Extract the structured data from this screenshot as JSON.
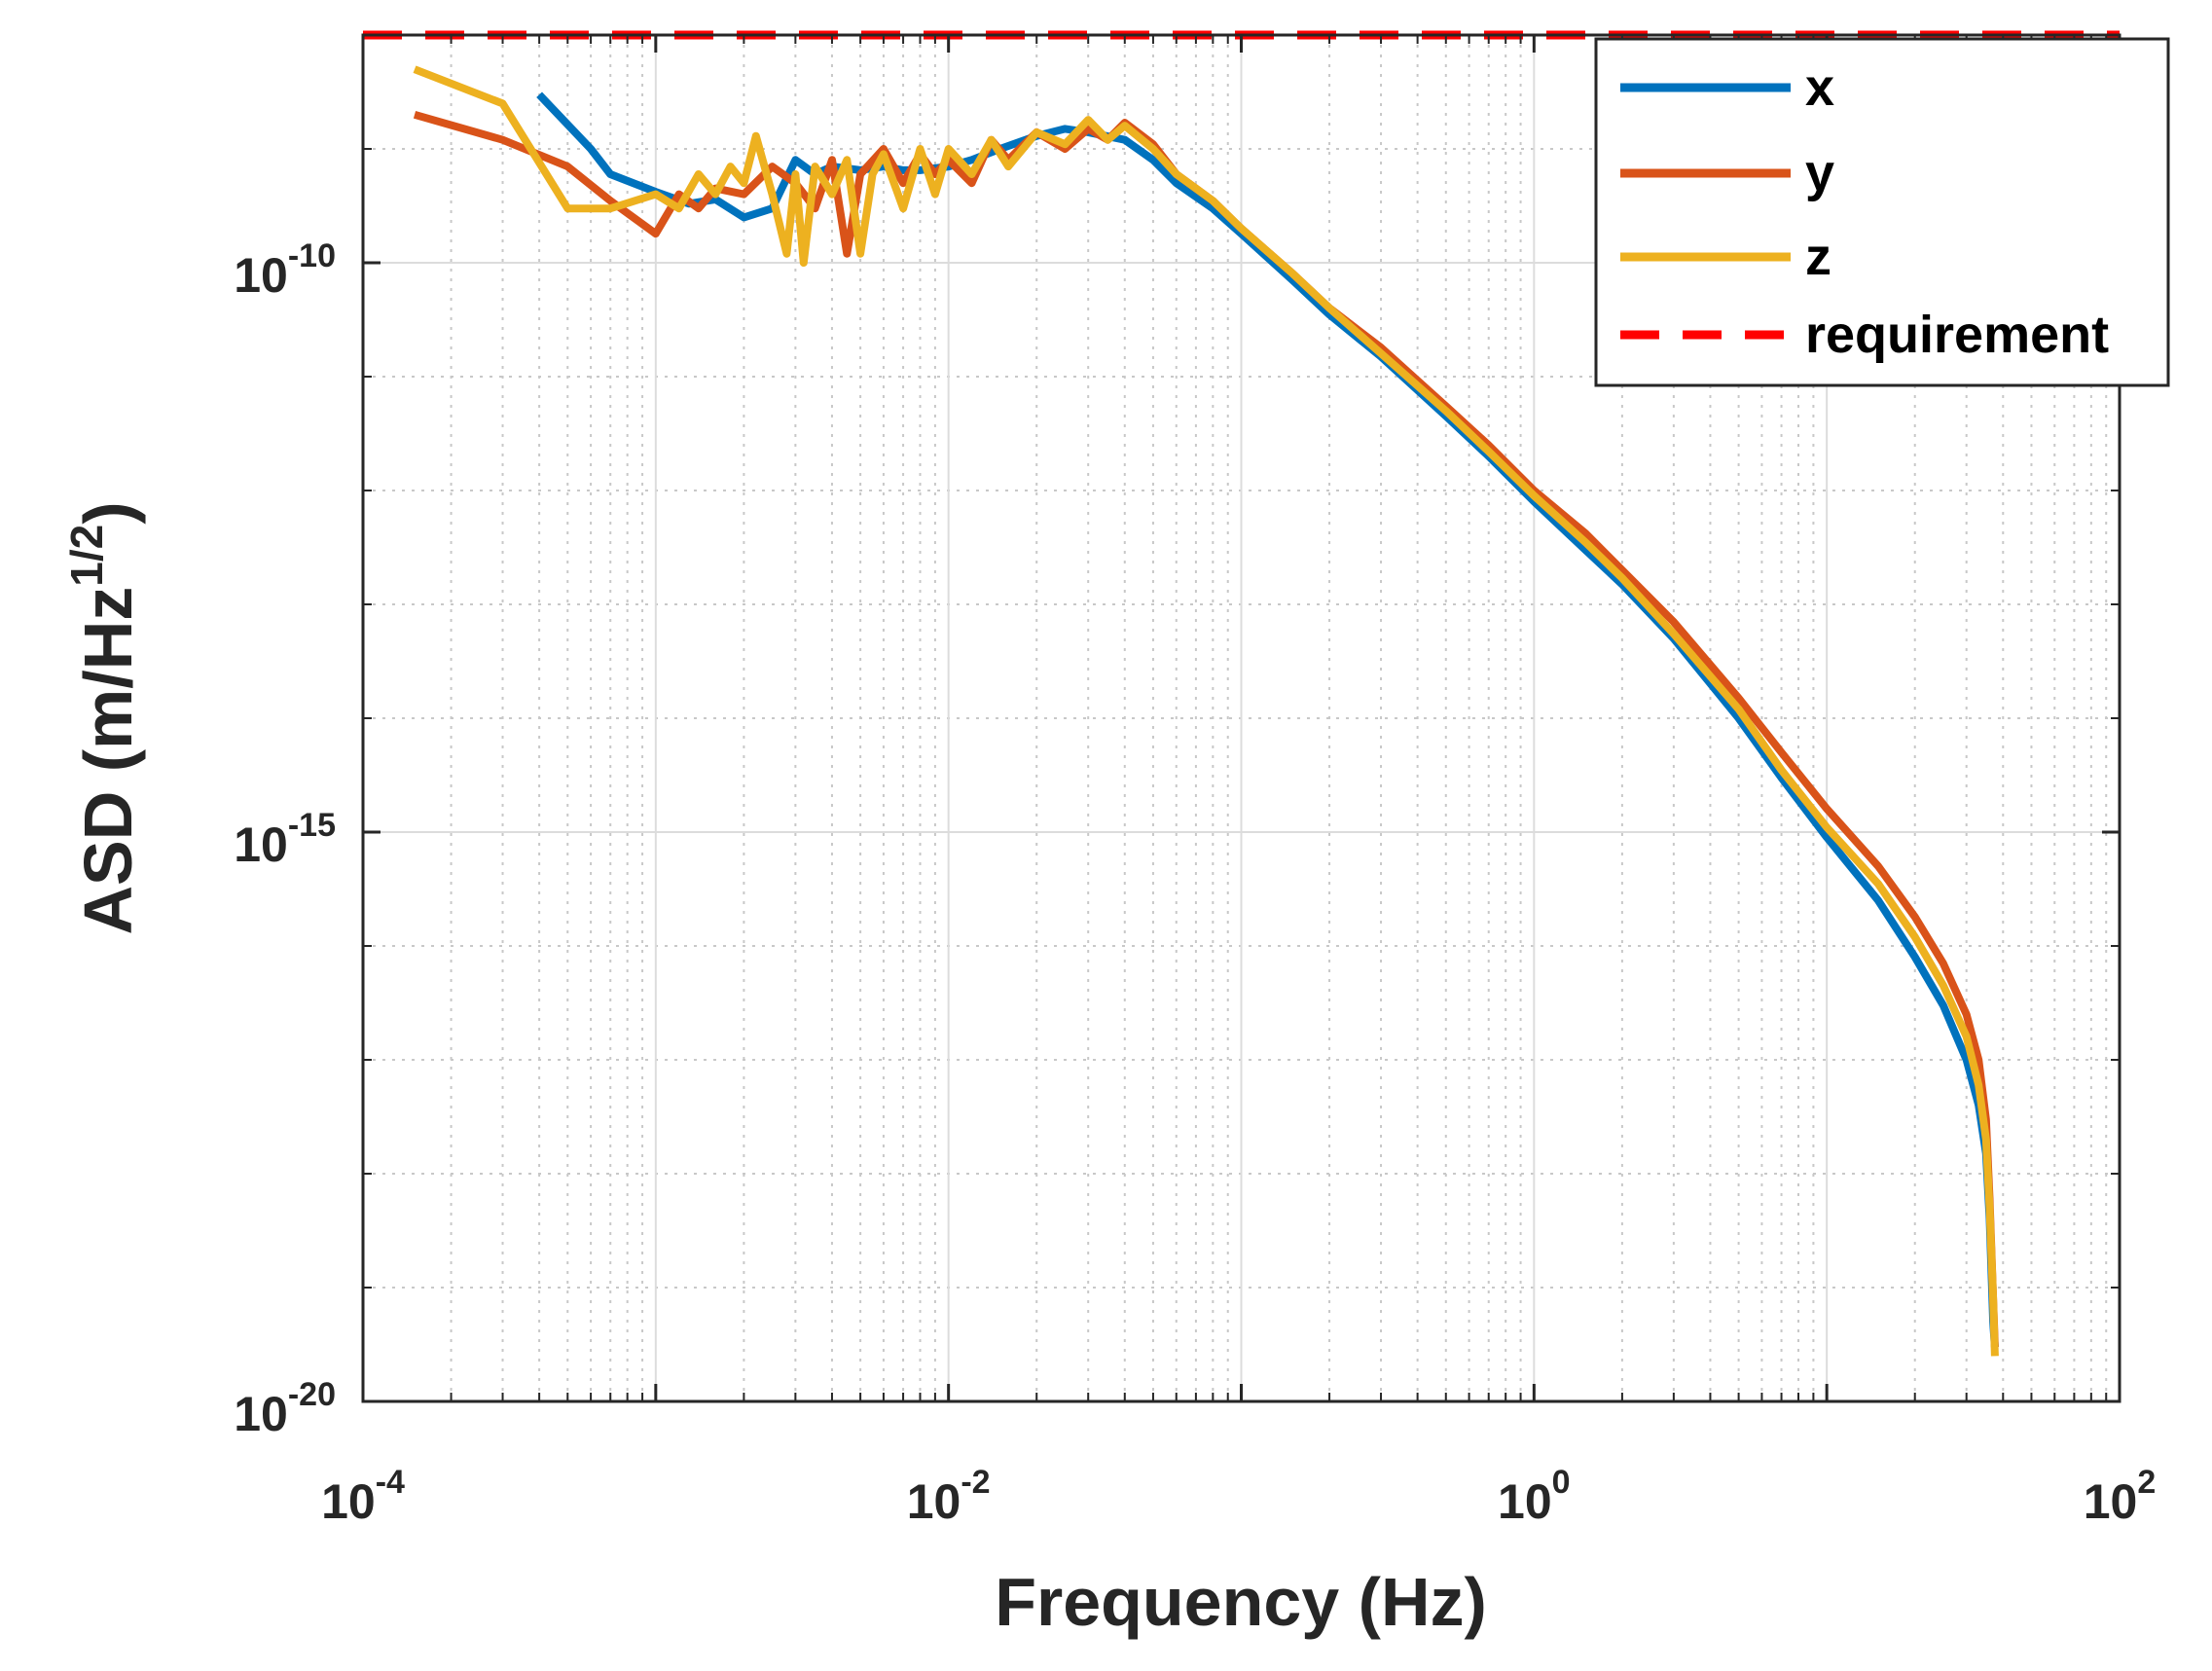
{
  "chart_data": {
    "type": "line",
    "x_scale": "log",
    "y_scale": "log",
    "xlabel": "Frequency (Hz)",
    "ylabel": {
      "base": "ASD (m/Hz",
      "exp": "1/2",
      "close": ")"
    },
    "xlim": [
      0.0001,
      100
    ],
    "ylim": [
      1e-20,
      1e-08
    ],
    "grid": true,
    "legend_position": "top-right",
    "x_ticks": [
      {
        "value": 0.0001,
        "base": "10",
        "exp": "-4"
      },
      {
        "value": 0.01,
        "base": "10",
        "exp": "-2"
      },
      {
        "value": 1,
        "base": "10",
        "exp": "0"
      },
      {
        "value": 100,
        "base": "10",
        "exp": "2"
      }
    ],
    "y_ticks": [
      {
        "value": 1e-20,
        "base": "10",
        "exp": "-20"
      },
      {
        "value": 1e-15,
        "base": "10",
        "exp": "-15"
      },
      {
        "value": 1e-10,
        "base": "10",
        "exp": "-10"
      }
    ],
    "series": [
      {
        "name": "x",
        "color": "#0072BD",
        "dash": false,
        "x": [
          0.0004,
          0.0006,
          0.0007,
          0.001,
          0.0013,
          0.0016,
          0.002,
          0.0025,
          0.003,
          0.0035,
          0.004,
          0.005,
          0.006,
          0.007,
          0.008,
          0.01,
          0.012,
          0.015,
          0.02,
          0.025,
          0.03,
          0.04,
          0.05,
          0.06,
          0.08,
          0.1,
          0.15,
          0.2,
          0.3,
          0.5,
          0.7,
          1,
          1.5,
          2,
          3,
          5,
          7,
          10,
          15,
          20,
          25,
          30,
          33,
          35,
          36,
          37,
          37.5
        ],
        "y": [
          3e-09,
          1e-09,
          6e-10,
          4.2e-10,
          3.3e-10,
          3.6e-10,
          2.5e-10,
          3e-10,
          8e-10,
          6e-10,
          7e-10,
          6.5e-10,
          7e-10,
          6.5e-10,
          6.5e-10,
          7e-10,
          8e-10,
          1e-09,
          1.3e-09,
          1.5e-09,
          1.4e-09,
          1.2e-09,
          8e-10,
          5e-10,
          3e-10,
          1.8e-10,
          7e-11,
          3.5e-11,
          1.5e-11,
          4.5e-12,
          2e-12,
          8e-13,
          3e-13,
          1.5e-13,
          5e-14,
          1e-14,
          3e-15,
          9e-16,
          2.5e-16,
          8e-17,
          3e-17,
          1e-17,
          4e-18,
          1.5e-18,
          4e-19,
          5e-20,
          3e-20
        ]
      },
      {
        "name": "y",
        "color": "#D95319",
        "dash": false,
        "x": [
          0.00015,
          0.0003,
          0.0005,
          0.0007,
          0.001,
          0.0012,
          0.0014,
          0.0016,
          0.002,
          0.0025,
          0.003,
          0.0035,
          0.004,
          0.0045,
          0.005,
          0.006,
          0.007,
          0.008,
          0.009,
          0.01,
          0.012,
          0.014,
          0.016,
          0.02,
          0.025,
          0.03,
          0.035,
          0.04,
          0.05,
          0.06,
          0.08,
          0.1,
          0.15,
          0.2,
          0.3,
          0.5,
          0.7,
          1,
          1.5,
          2,
          3,
          5,
          7,
          10,
          15,
          20,
          25,
          30,
          33,
          35,
          36,
          37,
          37.5
        ],
        "y": [
          2e-09,
          1.2e-09,
          7e-10,
          3.5e-10,
          1.8e-10,
          4e-10,
          3e-10,
          4.5e-10,
          4e-10,
          7e-10,
          5e-10,
          3e-10,
          8e-10,
          1.2e-10,
          6e-10,
          1e-09,
          5e-10,
          9e-10,
          6e-10,
          8e-10,
          5e-10,
          1.2e-09,
          8e-10,
          1.4e-09,
          1e-09,
          1.5e-09,
          1.2e-09,
          1.7e-09,
          1.1e-09,
          6e-10,
          3.5e-10,
          2e-10,
          8e-11,
          4e-11,
          1.8e-11,
          5.5e-12,
          2.5e-12,
          1e-12,
          4.2e-13,
          2e-13,
          7e-14,
          1.5e-14,
          5e-15,
          1.6e-15,
          5e-16,
          1.8e-16,
          7e-17,
          2.5e-17,
          1e-17,
          3e-18,
          6e-19,
          8e-20,
          3e-20
        ]
      },
      {
        "name": "z",
        "color": "#EDB120",
        "dash": false,
        "x": [
          0.00015,
          0.0003,
          0.0005,
          0.0007,
          0.001,
          0.0012,
          0.0014,
          0.0016,
          0.0018,
          0.002,
          0.0022,
          0.0025,
          0.0028,
          0.003,
          0.0032,
          0.0035,
          0.004,
          0.0045,
          0.005,
          0.0055,
          0.006,
          0.007,
          0.008,
          0.009,
          0.01,
          0.012,
          0.014,
          0.016,
          0.02,
          0.025,
          0.03,
          0.035,
          0.04,
          0.05,
          0.06,
          0.08,
          0.1,
          0.15,
          0.2,
          0.3,
          0.5,
          0.7,
          1,
          1.5,
          2,
          3,
          5,
          7,
          10,
          15,
          20,
          25,
          30,
          33,
          35,
          36,
          37,
          37.5
        ],
        "y": [
          5e-09,
          2.5e-09,
          3e-10,
          3e-10,
          4e-10,
          3e-10,
          6e-10,
          4e-10,
          7e-10,
          5e-10,
          1.3e-09,
          4e-10,
          1.2e-10,
          6e-10,
          1e-10,
          7e-10,
          4e-10,
          8e-10,
          1.2e-10,
          6e-10,
          9e-10,
          3e-10,
          1e-09,
          4e-10,
          1e-09,
          6e-10,
          1.2e-09,
          7e-10,
          1.4e-09,
          1.1e-09,
          1.8e-09,
          1.2e-09,
          1.6e-09,
          1e-09,
          6e-10,
          3.5e-10,
          2e-10,
          8e-11,
          4e-11,
          1.6e-11,
          5e-12,
          2.2e-12,
          9e-13,
          3.5e-13,
          1.7e-13,
          5.5e-14,
          1.2e-14,
          3.5e-15,
          1.1e-15,
          3.5e-16,
          1.2e-16,
          4.5e-17,
          1.6e-17,
          6e-18,
          2e-18,
          5e-19,
          8e-20,
          2.5e-20
        ]
      },
      {
        "name": "requirement",
        "color": "#FF0000",
        "dash": true,
        "x": [
          0.0001,
          100
        ],
        "y": [
          1e-08,
          1e-08
        ]
      }
    ]
  }
}
